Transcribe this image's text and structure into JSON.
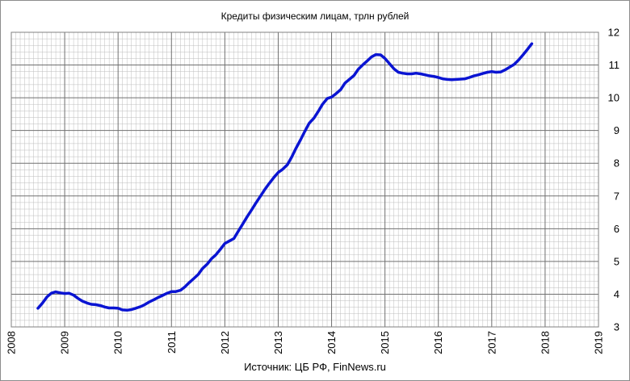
{
  "chart_data": {
    "type": "line",
    "title": "Кредиты физическим лицам,  трлн рублей",
    "source": "Источник: ЦБ РФ, FinNews.ru",
    "xlabel": "",
    "ylabel": "",
    "xlim": [
      2008,
      2019
    ],
    "ylim": [
      3,
      12
    ],
    "x_ticks": [
      "2008",
      "2009",
      "2010",
      "2011",
      "2012",
      "2013",
      "2014",
      "2015",
      "2016",
      "2017",
      "2018",
      "2019"
    ],
    "y_ticks": [
      "3",
      "4",
      "5",
      "6",
      "7",
      "8",
      "9",
      "10",
      "11",
      "12"
    ],
    "y_axis_side": "right",
    "grid": true,
    "series_color": "#0a14d2",
    "grid_color": "#bdbdbd",
    "x": [
      2008.5,
      2008.58,
      2008.67,
      2008.75,
      2008.83,
      2008.92,
      2009.0,
      2009.08,
      2009.17,
      2009.25,
      2009.33,
      2009.42,
      2009.5,
      2009.58,
      2009.67,
      2009.75,
      2009.83,
      2009.92,
      2010.0,
      2010.08,
      2010.17,
      2010.25,
      2010.33,
      2010.42,
      2010.5,
      2010.58,
      2010.67,
      2010.75,
      2010.83,
      2010.92,
      2011.0,
      2011.08,
      2011.17,
      2011.25,
      2011.33,
      2011.42,
      2011.5,
      2011.58,
      2011.67,
      2011.75,
      2011.83,
      2011.92,
      2012.0,
      2012.08,
      2012.17,
      2012.25,
      2012.33,
      2012.42,
      2012.5,
      2012.58,
      2012.67,
      2012.75,
      2012.83,
      2012.92,
      2013.0,
      2013.08,
      2013.17,
      2013.25,
      2013.33,
      2013.42,
      2013.5,
      2013.58,
      2013.67,
      2013.75,
      2013.83,
      2013.92,
      2014.0,
      2014.08,
      2014.17,
      2014.25,
      2014.33,
      2014.42,
      2014.5,
      2014.58,
      2014.67,
      2014.75,
      2014.83,
      2014.92,
      2015.0,
      2015.08,
      2015.17,
      2015.25,
      2015.33,
      2015.42,
      2015.5,
      2015.58,
      2015.67,
      2015.75,
      2015.83,
      2015.92,
      2016.0,
      2016.08,
      2016.17,
      2016.25,
      2016.33,
      2016.42,
      2016.5,
      2016.58,
      2016.67,
      2016.75,
      2016.83,
      2016.92,
      2017.0,
      2017.08,
      2017.17,
      2017.25,
      2017.33,
      2017.42,
      2017.5,
      2017.58,
      2017.67,
      2017.75
    ],
    "values": [
      3.57,
      3.72,
      3.92,
      4.03,
      4.07,
      4.04,
      4.02,
      4.03,
      3.97,
      3.87,
      3.79,
      3.73,
      3.69,
      3.68,
      3.65,
      3.61,
      3.58,
      3.58,
      3.57,
      3.52,
      3.51,
      3.53,
      3.57,
      3.62,
      3.68,
      3.76,
      3.83,
      3.9,
      3.96,
      4.03,
      4.08,
      4.08,
      4.12,
      4.22,
      4.35,
      4.48,
      4.6,
      4.78,
      4.92,
      5.08,
      5.2,
      5.38,
      5.55,
      5.62,
      5.7,
      5.92,
      6.13,
      6.37,
      6.57,
      6.78,
      7.0,
      7.2,
      7.38,
      7.57,
      7.72,
      7.81,
      7.95,
      8.18,
      8.45,
      8.72,
      8.98,
      9.22,
      9.38,
      9.58,
      9.8,
      9.98,
      10.02,
      10.12,
      10.25,
      10.45,
      10.56,
      10.68,
      10.87,
      11.0,
      11.13,
      11.25,
      11.32,
      11.31,
      11.2,
      11.05,
      10.88,
      10.78,
      10.75,
      10.73,
      10.73,
      10.75,
      10.73,
      10.7,
      10.67,
      10.65,
      10.62,
      10.58,
      10.56,
      10.55,
      10.56,
      10.57,
      10.58,
      10.62,
      10.67,
      10.7,
      10.74,
      10.78,
      10.8,
      10.78,
      10.79,
      10.85,
      10.93,
      11.02,
      11.15,
      11.3,
      11.48,
      11.65
    ]
  }
}
